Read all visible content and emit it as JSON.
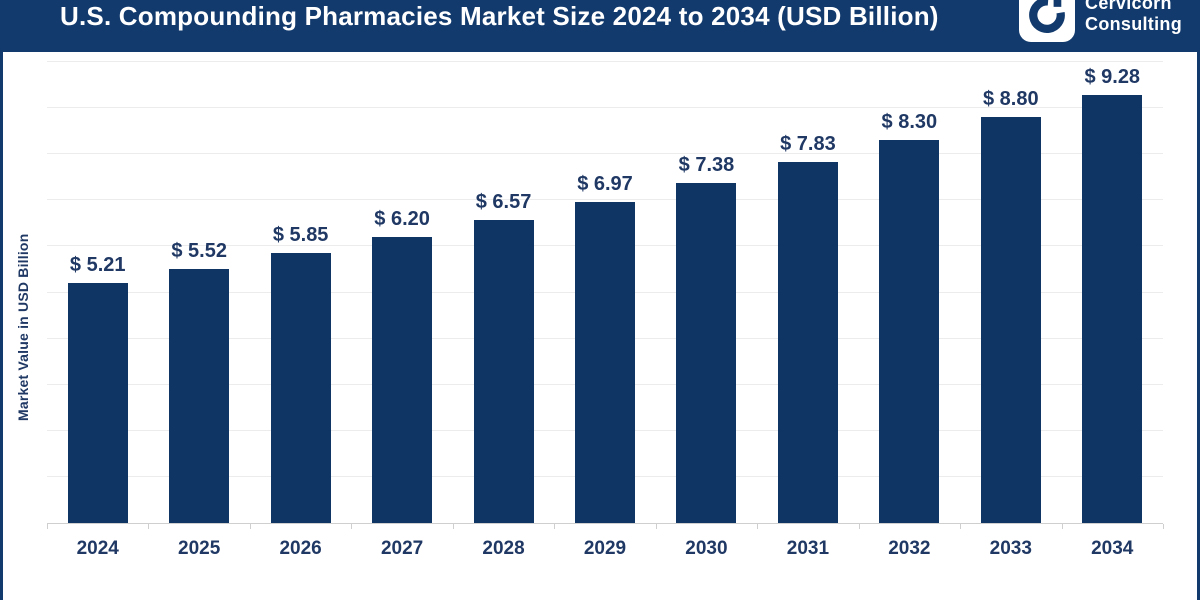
{
  "header": {
    "title": "U.S. Compounding Pharmacies Market Size 2024 to 2034 (USD Billion)",
    "brand_line1": "Cervicorn",
    "brand_line2": "Consulting"
  },
  "chart_data": {
    "type": "bar",
    "title": "U.S. Compounding Pharmacies Market Size 2024 to 2034 (USD Billion)",
    "categories": [
      "2024",
      "2025",
      "2026",
      "2027",
      "2028",
      "2029",
      "2030",
      "2031",
      "2032",
      "2033",
      "2034"
    ],
    "values": [
      5.21,
      5.52,
      5.85,
      6.2,
      6.57,
      6.97,
      7.38,
      7.83,
      8.3,
      8.8,
      9.28
    ],
    "value_labels": [
      "$ 5.21",
      "$ 5.52",
      "$ 5.85",
      "$ 6.20",
      "$ 6.57",
      "$ 6.97",
      "$ 7.38",
      "$ 7.83",
      "$ 8.30",
      "$ 8.80",
      "$ 9.28"
    ],
    "xlabel": "",
    "ylabel": "Market Value in USD Billion",
    "ylim": [
      0,
      10
    ],
    "gridline_step": 1,
    "grid": true,
    "legend": "none",
    "colors": {
      "bar": "#0E3564",
      "header_background": "#123A6D",
      "text": "#1F3864",
      "gridline": "#ECECEC",
      "axis_line": "#CFCFCF",
      "title_text": "#FFFFFF"
    }
  }
}
